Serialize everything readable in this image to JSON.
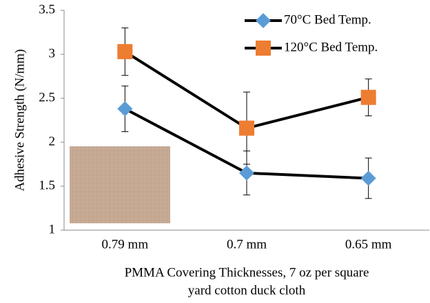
{
  "chart_data": {
    "type": "line",
    "ylabel": "Adhesive Strength (N/mm)",
    "xlabel": [
      "PMMA Covering Thicknesses, 7 oz per square",
      "yard cotton duck cloth"
    ],
    "categories": [
      "0.79 mm",
      "0.7 mm",
      "0.65 mm"
    ],
    "series": [
      {
        "name": "70°C Bed Temp.",
        "color": "#5b9bd5",
        "marker": "diamond",
        "values": [
          2.38,
          1.65,
          1.59
        ],
        "errors": [
          0.26,
          0.25,
          0.23
        ]
      },
      {
        "name": "120°C Bed Temp.",
        "color": "#ed7d31",
        "marker": "square",
        "values": [
          3.03,
          2.16,
          2.51
        ],
        "errors": [
          0.27,
          0.41,
          0.21
        ]
      }
    ],
    "line_color": "#000000",
    "ylim": [
      1,
      3.5
    ],
    "yticks": [
      1,
      1.5,
      2,
      2.5,
      3,
      3.5
    ],
    "grid": false,
    "legend": "top-right"
  }
}
